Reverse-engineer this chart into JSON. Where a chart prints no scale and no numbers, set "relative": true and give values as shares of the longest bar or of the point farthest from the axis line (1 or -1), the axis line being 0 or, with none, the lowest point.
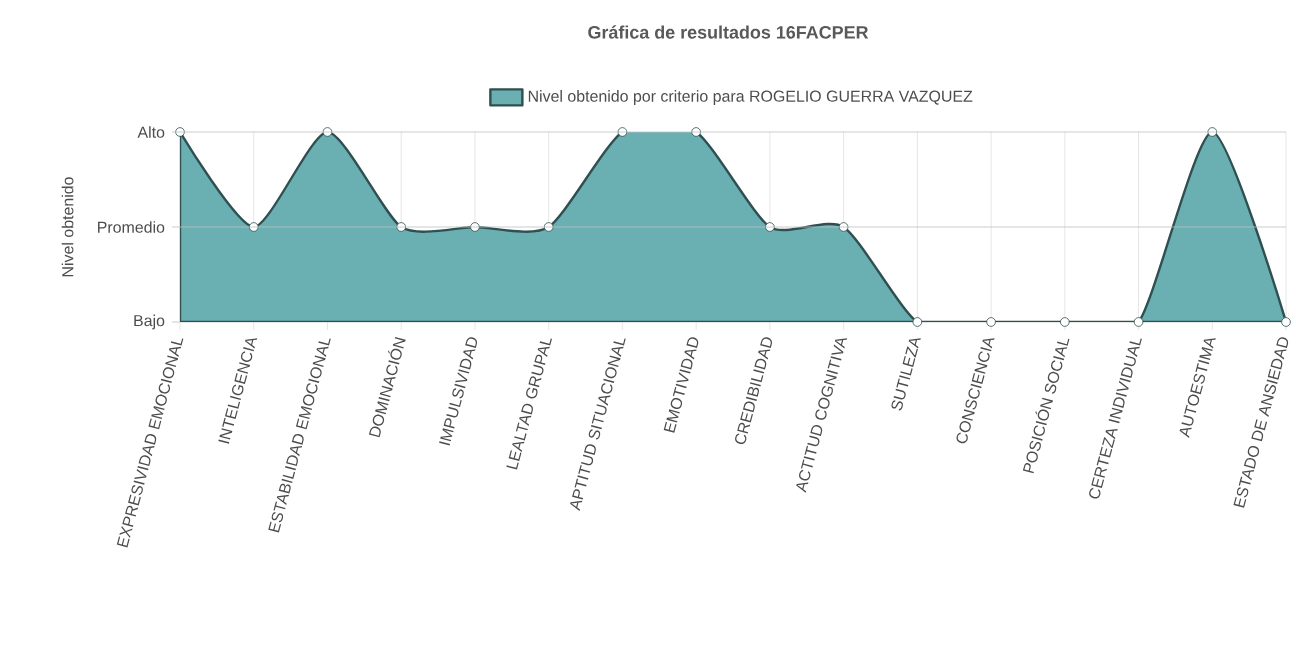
{
  "chart_data": {
    "type": "area",
    "title": "Gráfica de resultados 16FACPER",
    "ylabel": "Nivel obtenido",
    "categories": [
      "EXPRESIVIDAD EMOCIONAL",
      "INTELIGENCIA",
      "ESTABILIDAD EMOCIONAL",
      "DOMINACIÓN",
      "IMPULSIVIDAD",
      "LEALTAD GRUPAL",
      "APTITUD SITUACIONAL",
      "EMOTIVIDAD",
      "CREDIBILIDAD",
      "ACTITUD COGNITIVA",
      "SUTILEZA",
      "CONSCIENCIA",
      "POSICIÓN SOCIAL",
      "CERTEZA INDIVIDUAL",
      "AUTOESTIMA",
      "ESTADO DE ANSIEDAD"
    ],
    "series": [
      {
        "name": "Nivel obtenido por criterio para ROGELIO GUERRA VAZQUEZ",
        "color": "#6ab0b2",
        "values": [
          1,
          0.5,
          1,
          0.5,
          0.5,
          0.5,
          1,
          1,
          0.5,
          0.5,
          0,
          0,
          0,
          0,
          1,
          0
        ]
      }
    ],
    "relative": true,
    "annotations": [
      "Bajo"
    ],
    "ref_lines": [
      {
        "axis": "y",
        "value": 0.5,
        "label": "Promedio"
      },
      {
        "axis": "y",
        "value": 1,
        "label": "Alto"
      }
    ],
    "grid": "x",
    "legend": "top",
    "marker": "circle"
  }
}
